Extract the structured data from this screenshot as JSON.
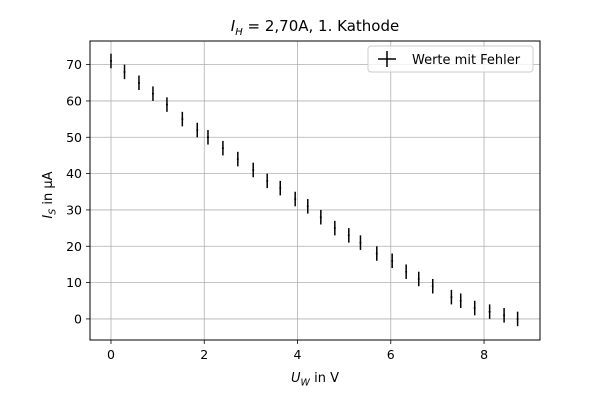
{
  "chart_data": {
    "type": "scatter",
    "title_var": "I",
    "title_sub": "H",
    "title_rest": " = 2,70A, 1. Kathode",
    "xlabel_var": "U",
    "xlabel_sub": "W",
    "xlabel_rest": " in V",
    "ylabel_var": "I",
    "ylabel_sub": "S",
    "ylabel_rest": " in µA",
    "xlim": [
      -0.45,
      9.2
    ],
    "ylim": [
      -5.8,
      76.5
    ],
    "xticks": [
      0,
      2,
      4,
      6,
      8
    ],
    "yticks": [
      0,
      10,
      20,
      30,
      40,
      50,
      60,
      70
    ],
    "grid": true,
    "legend_position": "top-right",
    "series": [
      {
        "name": "Werte mit Fehler",
        "color": "#000000",
        "marker": "errorbar",
        "yerr": 2,
        "xerr": 0.02,
        "x": [
          0.0,
          0.29,
          0.6,
          0.9,
          1.2,
          1.53,
          1.85,
          2.08,
          2.4,
          2.72,
          3.05,
          3.35,
          3.63,
          3.95,
          4.22,
          4.5,
          4.8,
          5.1,
          5.35,
          5.7,
          6.03,
          6.33,
          6.6,
          6.9,
          7.3,
          7.5,
          7.8,
          8.12,
          8.43,
          8.72
        ],
        "y": [
          71,
          68,
          65,
          62,
          59,
          55,
          52,
          50,
          47,
          44,
          41,
          38,
          36,
          33,
          31,
          28,
          25,
          23,
          21,
          18,
          16,
          13,
          11,
          9,
          6,
          5,
          3,
          2,
          1,
          0
        ]
      }
    ]
  }
}
